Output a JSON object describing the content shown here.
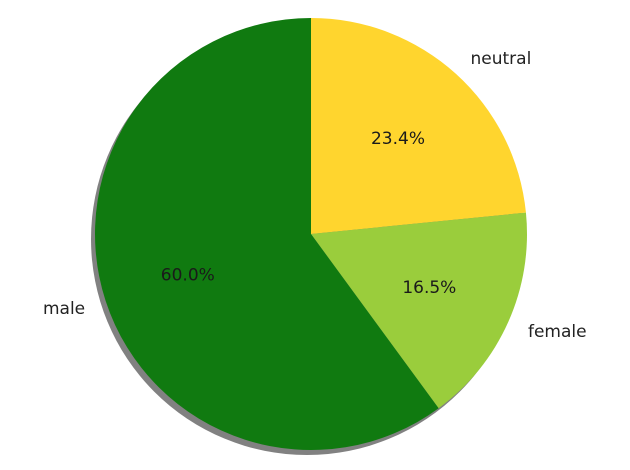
{
  "chart_data": {
    "type": "pie",
    "title": "",
    "slices": [
      {
        "label": "neutral",
        "value": 23.4,
        "pct_label": "23.4%",
        "color": "#FFD52E"
      },
      {
        "label": "female",
        "value": 16.5,
        "pct_label": "16.5%",
        "color": "#9ACD3C"
      },
      {
        "label": "male",
        "value": 60.0,
        "pct_label": "60.0%",
        "color": "#107A10"
      }
    ],
    "start_angle_deg": 90,
    "direction": "clockwise",
    "shadow": true
  }
}
